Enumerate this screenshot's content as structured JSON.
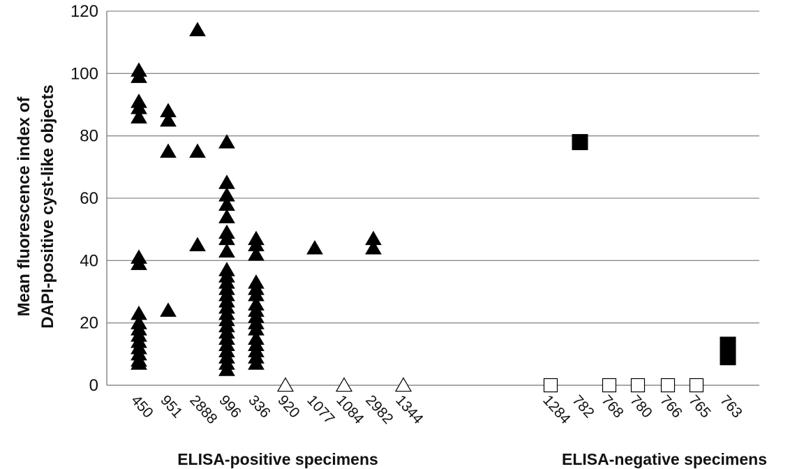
{
  "chart_data": {
    "type": "scatter",
    "ylabel_lines": [
      "Mean fluorescence index of",
      "DAPI-positive cyst-like objects"
    ],
    "ylim": [
      0,
      120
    ],
    "y_ticks": [
      0,
      20,
      40,
      60,
      80,
      100,
      120
    ],
    "grid": true,
    "groups": [
      {
        "label": "ELISA-positive specimens",
        "first_index": 0,
        "last_index": 9
      },
      {
        "label": "ELISA-negative specimens",
        "first_index": 10,
        "last_index": 16
      }
    ],
    "categories": [
      {
        "label": "450",
        "marker": "triangle-filled",
        "values": [
          101,
          99,
          91,
          89,
          86,
          41,
          39,
          23,
          20,
          18,
          16,
          14,
          12,
          10,
          8,
          7
        ]
      },
      {
        "label": "951",
        "marker": "triangle-filled",
        "values": [
          88,
          85,
          75,
          24
        ]
      },
      {
        "label": "2888",
        "marker": "triangle-filled",
        "values": [
          114,
          75,
          45
        ]
      },
      {
        "label": "996",
        "marker": "triangle-filled",
        "values": [
          78,
          65,
          61,
          58,
          54,
          49,
          47,
          43,
          37,
          35,
          33,
          31,
          29,
          27,
          25,
          23,
          21,
          19,
          17,
          15,
          13,
          11,
          9,
          7,
          5
        ]
      },
      {
        "label": "336",
        "marker": "triangle-filled",
        "values": [
          47,
          45,
          42,
          33,
          31,
          29,
          26,
          24,
          22,
          20,
          18,
          15,
          13,
          11,
          9,
          7
        ]
      },
      {
        "label": "920",
        "marker": "triangle-open",
        "values": [
          0
        ]
      },
      {
        "label": "1077",
        "marker": "triangle-filled",
        "values": [
          44
        ]
      },
      {
        "label": "1084",
        "marker": "triangle-open",
        "values": [
          0
        ]
      },
      {
        "label": "2982",
        "marker": "triangle-filled",
        "values": [
          47,
          44
        ]
      },
      {
        "label": "1344",
        "marker": "triangle-open",
        "values": [
          0
        ]
      },
      {
        "label": "1284",
        "marker": "square-open",
        "values": [
          0
        ]
      },
      {
        "label": "782",
        "marker": "square-filled",
        "values": [
          78
        ]
      },
      {
        "label": "768",
        "marker": "square-open",
        "values": [
          0
        ]
      },
      {
        "label": "780",
        "marker": "square-open",
        "values": [
          0
        ]
      },
      {
        "label": "766",
        "marker": "square-open",
        "values": [
          0
        ]
      },
      {
        "label": "765",
        "marker": "square-open",
        "values": [
          0
        ]
      },
      {
        "label": "763",
        "marker": "square-filled",
        "values": [
          13,
          9
        ]
      }
    ]
  },
  "colors": {
    "marker_fill": "#000000",
    "grid": "#8a8a8a",
    "axis": "#8a8a8a",
    "open_fill": "#ffffff"
  }
}
